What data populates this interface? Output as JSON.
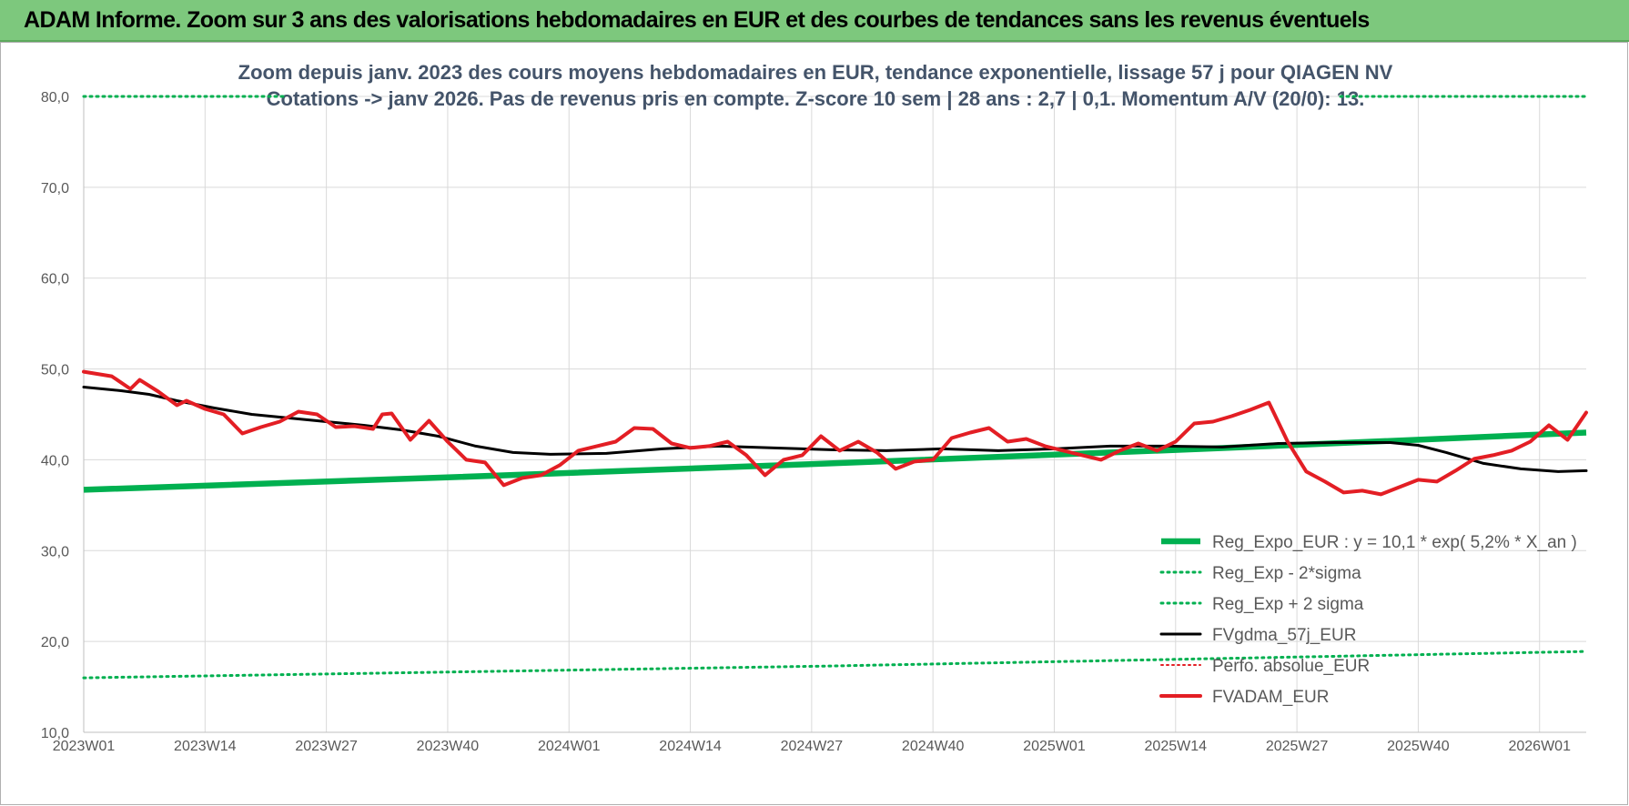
{
  "banner": {
    "title": "ADAM Informe. Zoom sur 3 ans des valorisations hebdomadaires en EUR et des courbes de tendances sans les revenus éventuels"
  },
  "colors": {
    "banner_bg": "#7dc87d",
    "reg_expo": "#00b050",
    "fvgdma": "#000000",
    "fvadam": "#e31e24",
    "perfo": "#e31e24",
    "grid": "#d9d9d9"
  },
  "chart_data": {
    "type": "line",
    "title": [
      "Zoom depuis janv. 2023 des cours moyens hebdomadaires en EUR, tendance exponentielle, lissage 57 j pour QIAGEN NV",
      "Cotations -> janv 2026. Pas de revenus pris en compte. Z-score 10 sem | 28 ans : 2,7 | 0,1. Momentum A/V (20/0): 13."
    ],
    "xlabel": "",
    "ylabel": "",
    "ylim": [
      10,
      80
    ],
    "ytick_values": [
      10,
      20,
      30,
      40,
      50,
      60,
      70,
      80
    ],
    "ytick_labels": [
      "10,0",
      "20,0",
      "30,0",
      "40,0",
      "50,0",
      "60,0",
      "70,0",
      "80,0"
    ],
    "x_tick_labels": [
      "2023W01",
      "2023W14",
      "2023W27",
      "2023W40",
      "2024W01",
      "2024W14",
      "2024W27",
      "2024W40",
      "2025W01",
      "2025W14",
      "2025W27",
      "2025W40",
      "2026W01"
    ],
    "x_tick_step_weeks": 13,
    "n_weeks": 162,
    "legend_position": "bottom-right",
    "series": [
      {
        "name": "Reg_Expo_EUR : y = 10,1 * exp( 5,2% *  X_an )",
        "style": "solid-thick",
        "keypoints": [
          [
            0,
            36.7
          ],
          [
            40,
            38.1
          ],
          [
            80,
            39.6
          ],
          [
            120,
            41.2
          ],
          [
            161,
            43.0
          ]
        ]
      },
      {
        "name": "Reg_Exp - 2*sigma",
        "style": "dotted",
        "keypoints": [
          [
            0,
            16.0
          ],
          [
            80,
            17.3
          ],
          [
            161,
            18.9
          ]
        ]
      },
      {
        "name": "Reg_Exp + 2 sigma",
        "style": "dotted",
        "keypoints": [
          [
            0,
            80.0
          ],
          [
            161,
            80.0
          ]
        ]
      },
      {
        "name": "FVgdma_57j_EUR",
        "style": "solid",
        "keypoints": [
          [
            0,
            48.0
          ],
          [
            4,
            47.6
          ],
          [
            7,
            47.2
          ],
          [
            10,
            46.5
          ],
          [
            14,
            45.7
          ],
          [
            18,
            45.0
          ],
          [
            22,
            44.6
          ],
          [
            26,
            44.2
          ],
          [
            30,
            43.8
          ],
          [
            34,
            43.3
          ],
          [
            38,
            42.6
          ],
          [
            42,
            41.5
          ],
          [
            46,
            40.8
          ],
          [
            50,
            40.6
          ],
          [
            56,
            40.7
          ],
          [
            62,
            41.2
          ],
          [
            68,
            41.5
          ],
          [
            74,
            41.3
          ],
          [
            80,
            41.1
          ],
          [
            86,
            41.0
          ],
          [
            92,
            41.2
          ],
          [
            98,
            41.0
          ],
          [
            104,
            41.2
          ],
          [
            110,
            41.5
          ],
          [
            116,
            41.5
          ],
          [
            122,
            41.4
          ],
          [
            128,
            41.8
          ],
          [
            134,
            41.9
          ],
          [
            140,
            41.9
          ],
          [
            143,
            41.6
          ],
          [
            146,
            40.8
          ],
          [
            150,
            39.6
          ],
          [
            154,
            39.0
          ],
          [
            158,
            38.7
          ],
          [
            161,
            38.8
          ]
        ]
      },
      {
        "name": "Perfo. absolue_EUR",
        "style": "dotted",
        "keypoints": []
      },
      {
        "name": "FVADAM_EUR",
        "style": "solid-thick",
        "keypoints": [
          [
            0,
            49.7
          ],
          [
            3,
            49.2
          ],
          [
            5,
            47.8
          ],
          [
            6,
            48.8
          ],
          [
            8,
            47.5
          ],
          [
            10,
            46.0
          ],
          [
            11,
            46.5
          ],
          [
            13,
            45.6
          ],
          [
            15,
            45.0
          ],
          [
            17,
            42.9
          ],
          [
            19,
            43.6
          ],
          [
            21,
            44.2
          ],
          [
            23,
            45.3
          ],
          [
            25,
            45.0
          ],
          [
            27,
            43.6
          ],
          [
            29,
            43.7
          ],
          [
            31,
            43.4
          ],
          [
            32,
            45.0
          ],
          [
            33,
            45.1
          ],
          [
            35,
            42.2
          ],
          [
            37,
            44.3
          ],
          [
            39,
            42.0
          ],
          [
            41,
            40.0
          ],
          [
            43,
            39.7
          ],
          [
            45,
            37.2
          ],
          [
            47,
            38.0
          ],
          [
            49,
            38.3
          ],
          [
            51,
            39.4
          ],
          [
            53,
            41.0
          ],
          [
            55,
            41.5
          ],
          [
            57,
            42.0
          ],
          [
            59,
            43.5
          ],
          [
            61,
            43.4
          ],
          [
            63,
            41.8
          ],
          [
            65,
            41.3
          ],
          [
            67,
            41.5
          ],
          [
            69,
            42.0
          ],
          [
            71,
            40.5
          ],
          [
            73,
            38.3
          ],
          [
            75,
            40.0
          ],
          [
            77,
            40.5
          ],
          [
            79,
            42.6
          ],
          [
            81,
            41.0
          ],
          [
            83,
            42.0
          ],
          [
            85,
            40.8
          ],
          [
            87,
            39.0
          ],
          [
            89,
            39.8
          ],
          [
            91,
            40.0
          ],
          [
            93,
            42.4
          ],
          [
            95,
            43.0
          ],
          [
            97,
            43.5
          ],
          [
            99,
            42.0
          ],
          [
            101,
            42.3
          ],
          [
            103,
            41.5
          ],
          [
            105,
            41.0
          ],
          [
            107,
            40.5
          ],
          [
            109,
            40.0
          ],
          [
            111,
            41.0
          ],
          [
            113,
            41.8
          ],
          [
            115,
            41.0
          ],
          [
            117,
            42.0
          ],
          [
            119,
            44.0
          ],
          [
            121,
            44.2
          ],
          [
            123,
            44.8
          ],
          [
            125,
            45.5
          ],
          [
            127,
            46.3
          ],
          [
            129,
            42.0
          ],
          [
            131,
            38.7
          ],
          [
            133,
            37.6
          ],
          [
            135,
            36.4
          ],
          [
            137,
            36.6
          ],
          [
            139,
            36.2
          ],
          [
            141,
            37.0
          ],
          [
            143,
            37.8
          ],
          [
            145,
            37.6
          ],
          [
            147,
            38.8
          ],
          [
            149,
            40.1
          ],
          [
            151,
            40.5
          ],
          [
            153,
            41.0
          ],
          [
            155,
            42.0
          ],
          [
            157,
            43.8
          ],
          [
            159,
            42.2
          ],
          [
            161,
            45.2
          ]
        ]
      }
    ]
  }
}
